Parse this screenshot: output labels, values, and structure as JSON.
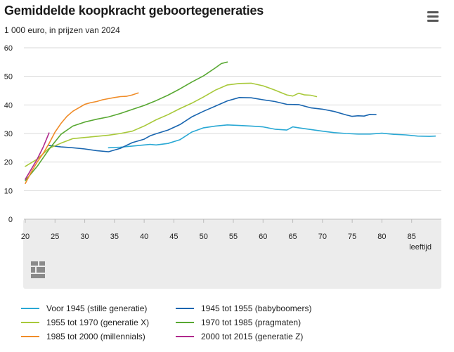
{
  "header": {
    "title": "Gemiddelde koopkracht geboortegeneraties",
    "subtitle": "1 000 euro, in prijzen van 2024",
    "menu_icon": "hamburger-menu-icon"
  },
  "logo": {
    "name": "cbs-logo-icon"
  },
  "chart_data": {
    "type": "line",
    "title": "Gemiddelde koopkracht geboortegeneraties",
    "subtitle": "1 000 euro, in prijzen van 2024",
    "xlabel": "leeftijd",
    "ylabel": "",
    "xlim": [
      20,
      90
    ],
    "ylim": [
      0,
      60
    ],
    "xticks": [
      20,
      25,
      30,
      35,
      40,
      45,
      50,
      55,
      60,
      65,
      70,
      75,
      80,
      85
    ],
    "yticks": [
      0,
      10,
      20,
      30,
      40,
      50,
      60
    ],
    "grid": true,
    "legend_position": "bottom",
    "series": [
      {
        "name": "Voor 1945 (stille generatie)",
        "color": "#29a8d4",
        "x": [
          34,
          36,
          38,
          40,
          41,
          42,
          44,
          46,
          48,
          50,
          52,
          54,
          56,
          58,
          60,
          62,
          64,
          65,
          66,
          68,
          70,
          72,
          74,
          76,
          78,
          80,
          82,
          84,
          86,
          88,
          89
        ],
        "y": [
          25,
          25.2,
          25.6,
          26,
          26.2,
          26,
          26.5,
          27.8,
          30.5,
          32,
          32.6,
          33,
          32.8,
          32.6,
          32.3,
          31.5,
          31.2,
          32.3,
          32,
          31.4,
          30.8,
          30.3,
          30,
          29.8,
          29.8,
          30.1,
          29.7,
          29.5,
          29.1,
          29.0,
          29.1
        ]
      },
      {
        "name": "1945 tot 1955 (babyboomers)",
        "color": "#1a66b0",
        "x": [
          24,
          26,
          28,
          30,
          32,
          34,
          36,
          38,
          40,
          41,
          42,
          44,
          46,
          48,
          50,
          52,
          54,
          56,
          58,
          60,
          62,
          64,
          66,
          68,
          70,
          72,
          74,
          75,
          76,
          77,
          78,
          79
        ],
        "y": [
          25.8,
          25.3,
          25,
          24.6,
          24,
          23.6,
          24.8,
          26.8,
          28,
          29.2,
          29.9,
          31.2,
          33.1,
          35.8,
          37.8,
          39.6,
          41.4,
          42.6,
          42.5,
          41.8,
          41.2,
          40.2,
          40.1,
          39,
          38.5,
          37.7,
          36.5,
          36.0,
          36.2,
          36.1,
          36.7,
          36.6
        ]
      },
      {
        "name": "1955 tot 1970 (generatie X)",
        "color": "#a8c93a",
        "x": [
          20,
          22,
          24,
          26,
          28,
          30,
          32,
          34,
          36,
          38,
          40,
          42,
          44,
          46,
          48,
          50,
          52,
          54,
          56,
          58,
          60,
          62,
          64,
          65,
          66,
          67,
          68,
          69
        ],
        "y": [
          18.5,
          21,
          24.8,
          26.6,
          28.2,
          28.6,
          29,
          29.4,
          30,
          30.8,
          32.6,
          34.8,
          36.6,
          38.7,
          40.6,
          42.8,
          45.2,
          47,
          47.5,
          47.6,
          46.7,
          45.2,
          43.5,
          43.1,
          44.1,
          43.5,
          43.4,
          42.9
        ]
      },
      {
        "name": "1970 tot 1985 (pragmaten)",
        "color": "#58a832",
        "x": [
          20,
          22,
          24,
          26,
          28,
          30,
          32,
          34,
          36,
          38,
          40,
          42,
          44,
          46,
          48,
          50,
          52,
          53,
          54
        ],
        "y": [
          13.5,
          18.5,
          24.5,
          29.7,
          32.6,
          34,
          35,
          35.8,
          37,
          38.4,
          39.8,
          41.5,
          43.4,
          45.6,
          48,
          50.2,
          53,
          54.5,
          55
        ]
      },
      {
        "name": "1985 tot 2000 (millennials)",
        "color": "#f08c28",
        "x": [
          20,
          21,
          22,
          23,
          24,
          25,
          26,
          27,
          28,
          29,
          30,
          31,
          32,
          33,
          34,
          35,
          36,
          37,
          38,
          39
        ],
        "y": [
          12.5,
          16.5,
          20,
          23,
          26.5,
          30.5,
          33.5,
          36,
          37.8,
          39,
          40.2,
          40.8,
          41.2,
          41.8,
          42.2,
          42.6,
          42.9,
          43,
          43.5,
          44.2
        ]
      },
      {
        "name": "2000 tot 2015 (generatie Z)",
        "color": "#b0288c",
        "x": [
          20,
          21,
          22,
          23,
          24
        ],
        "y": [
          14,
          17.5,
          21,
          25.2,
          30.2
        ]
      }
    ]
  }
}
